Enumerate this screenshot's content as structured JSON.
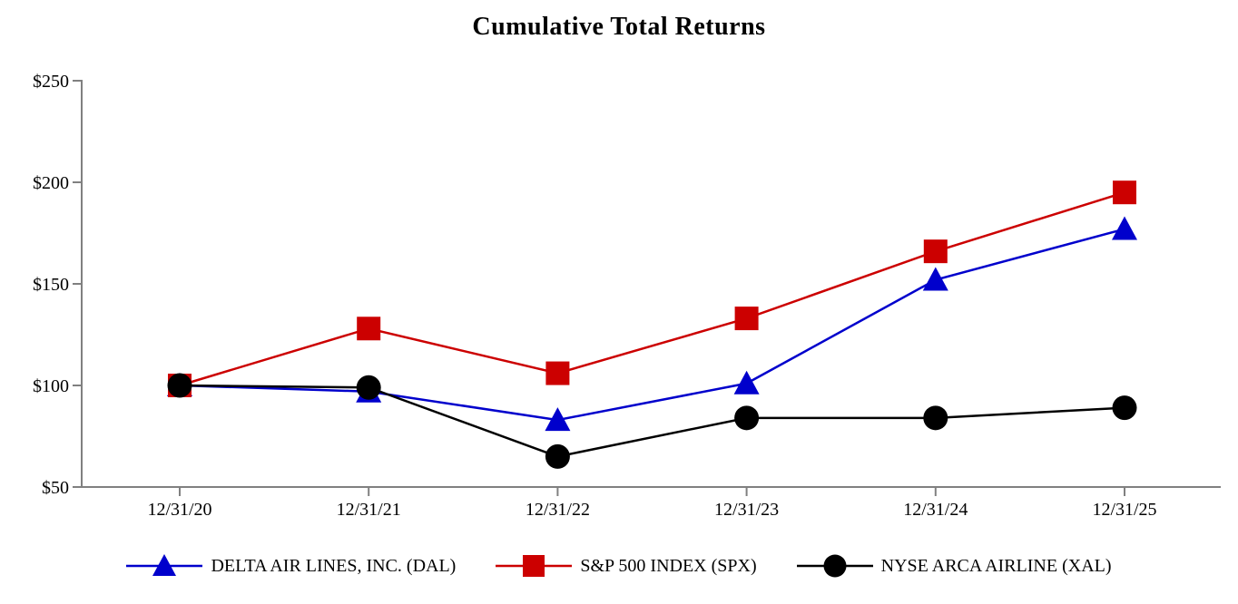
{
  "chart_data": {
    "type": "line",
    "title": "Cumulative Total Returns",
    "x": [
      "12/31/20",
      "12/31/21",
      "12/31/22",
      "12/31/23",
      "12/31/24",
      "12/31/25"
    ],
    "series": [
      {
        "name": "DELTA AIR LINES, INC. (DAL)",
        "marker": "triangle",
        "color": "#0000CC",
        "values": [
          100,
          97,
          83,
          101,
          152,
          177
        ]
      },
      {
        "name": "S&P 500 INDEX (SPX)",
        "marker": "square",
        "color": "#CC0000",
        "values": [
          100,
          128,
          106,
          133,
          166,
          195
        ]
      },
      {
        "name": "NYSE ARCA AIRLINE (XAL)",
        "marker": "circle",
        "color": "#000000",
        "values": [
          100,
          99,
          65,
          84,
          84,
          89
        ]
      }
    ],
    "ytick_labels": [
      "$50",
      "$100",
      "$150",
      "$200",
      "$250"
    ],
    "ytick_values": [
      50,
      100,
      150,
      200,
      250
    ],
    "ylim": [
      50,
      250
    ],
    "xlabel": "",
    "ylabel": "",
    "grid": false,
    "legend_position": "bottom",
    "axis_color": "#808080",
    "text_color": "#000000"
  }
}
